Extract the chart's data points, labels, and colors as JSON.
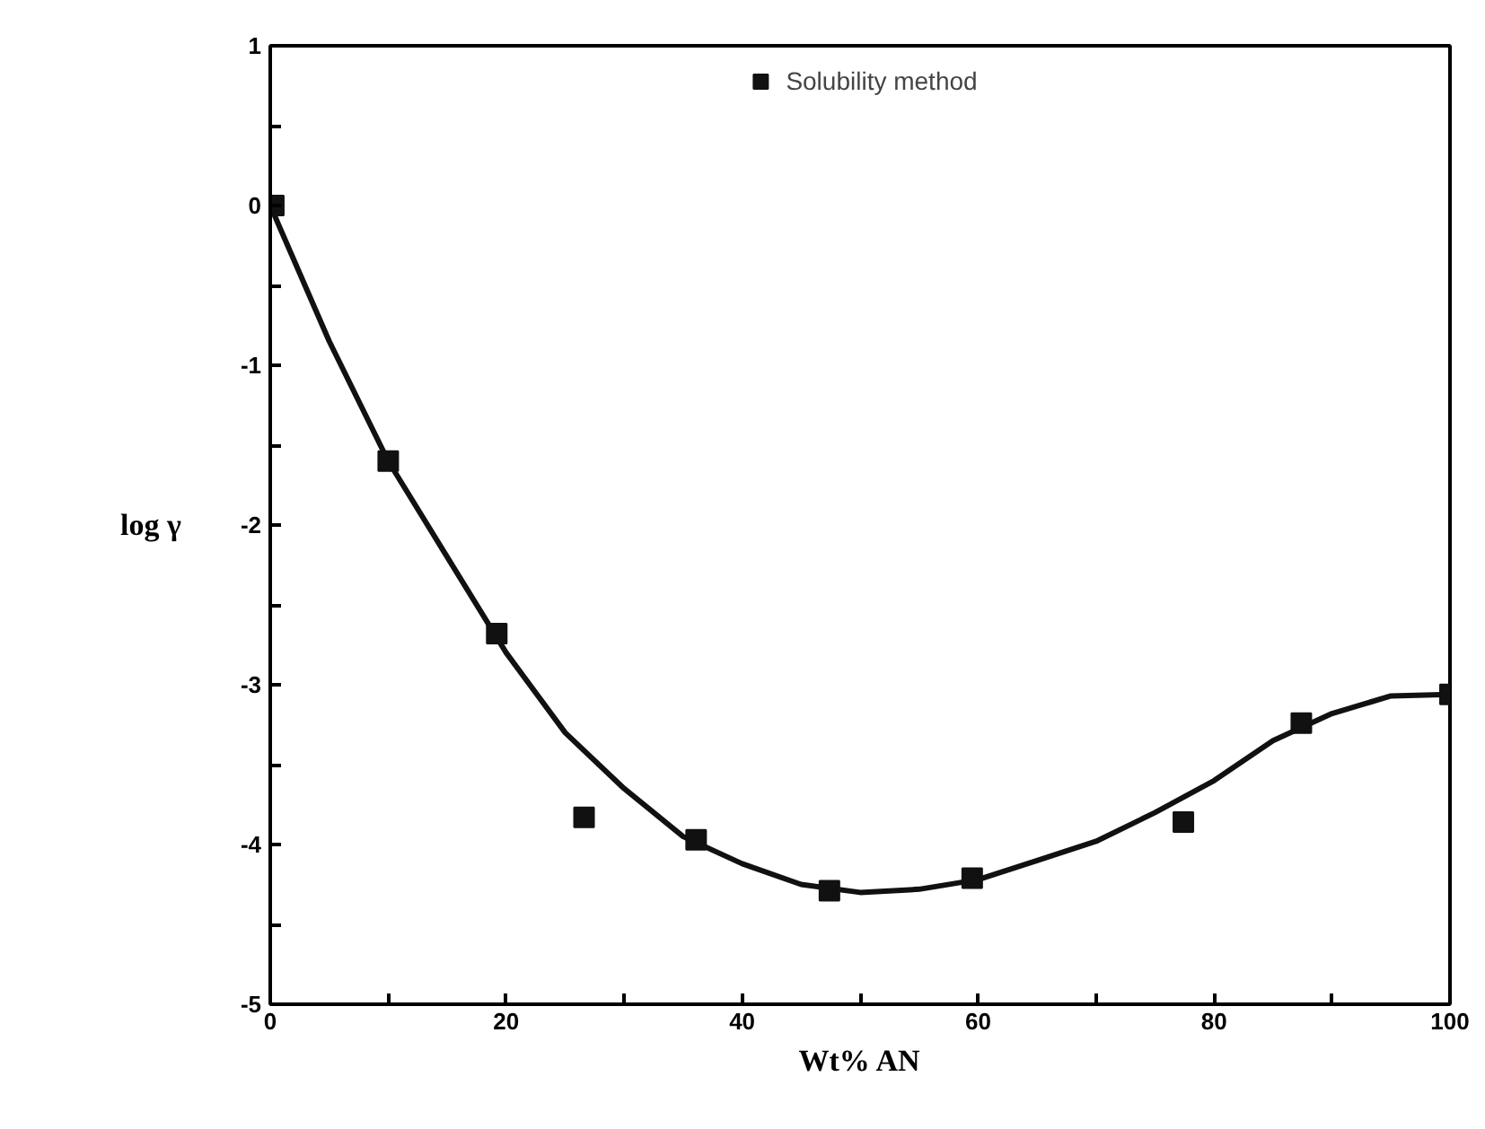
{
  "chart_data": {
    "type": "scatter",
    "xlabel": "Wt% AN",
    "ylabel": "log γ",
    "xlim": [
      0,
      100
    ],
    "ylim": [
      -5,
      1
    ],
    "xticks": [
      0,
      {
        "value": 10,
        "label": null
      },
      20,
      {
        "value": 30,
        "label": null
      },
      40,
      {
        "value": 50,
        "label": null
      },
      60,
      {
        "value": 70,
        "label": null
      },
      80,
      {
        "value": 90,
        "label": null
      },
      100
    ],
    "yticks": [
      -5,
      {
        "value": -4.5,
        "label": null
      },
      -4,
      {
        "value": -3.5,
        "label": null
      },
      -3,
      {
        "value": -2.5,
        "label": null
      },
      -2,
      {
        "value": -1.5,
        "label": null
      },
      -1,
      {
        "value": -0.5,
        "label": null
      },
      0,
      {
        "value": 0.5,
        "label": null
      },
      1
    ],
    "grid": false,
    "legend": "top",
    "series": [
      {
        "name": "Solubility method",
        "marker": "square",
        "color": "#111111",
        "x": [
          0.3,
          10,
          19.2,
          26.6,
          36.1,
          47.4,
          59.5,
          77.4,
          87.4,
          100
        ],
        "values": [
          0,
          -1.6,
          -2.68,
          -3.83,
          -3.97,
          -4.29,
          -4.21,
          -3.86,
          -3.24,
          -3.06
        ]
      },
      {
        "type": "line",
        "color": "#111111",
        "line_style": "solid",
        "x": [
          0,
          5,
          10,
          15,
          20,
          25,
          30,
          35,
          40,
          45,
          50,
          55,
          60,
          65,
          70,
          75,
          80,
          85,
          90,
          95,
          100
        ],
        "values": [
          0,
          -0.85,
          -1.6,
          -2.2,
          -2.8,
          -3.3,
          -3.65,
          -3.95,
          -4.12,
          -4.25,
          -4.3,
          -4.28,
          -4.22,
          -4.1,
          -3.98,
          -3.8,
          -3.6,
          -3.35,
          -3.18,
          -3.07,
          -3.06
        ]
      }
    ]
  }
}
